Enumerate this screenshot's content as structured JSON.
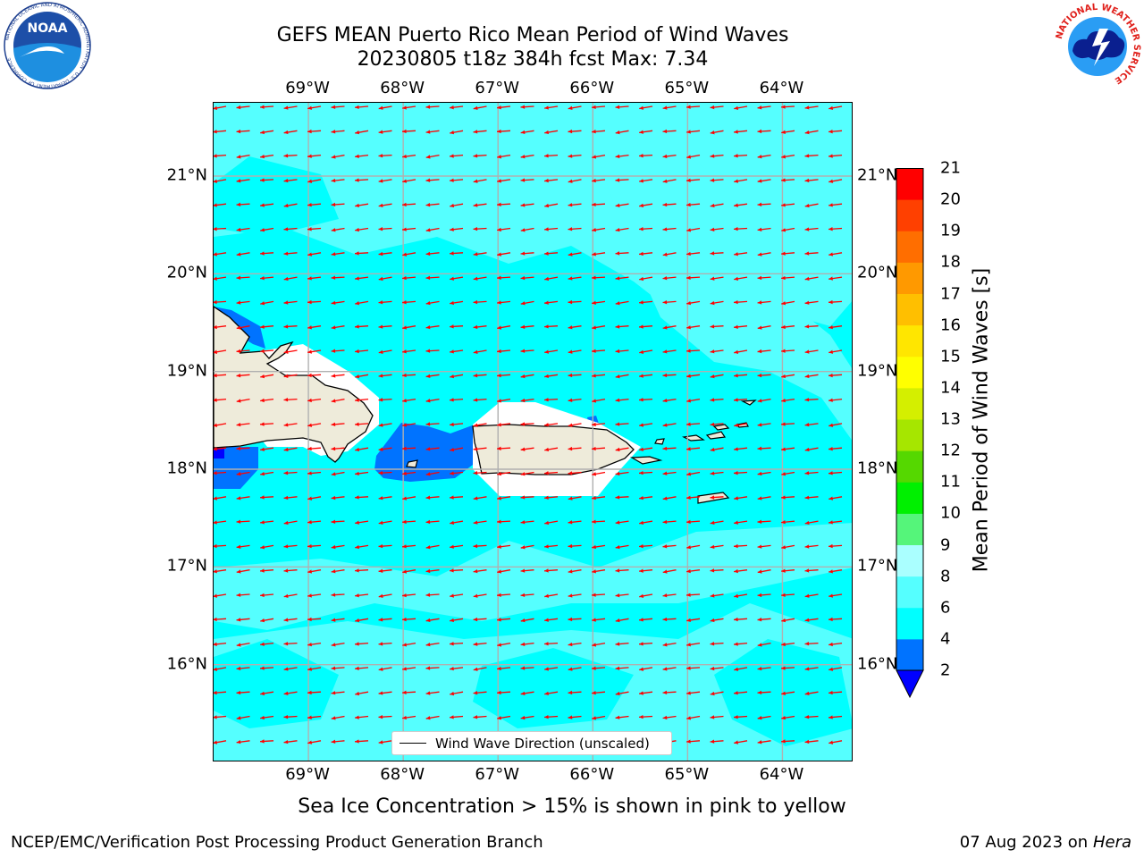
{
  "title": {
    "line1": "GEFS MEAN Puerto Rico Mean Period of Wind Waves",
    "line2": "20230805 t18z 384h fcst   Max: 7.34"
  },
  "logos": {
    "noaa": "NOAA",
    "noaa_ring_text": "NATIONAL OCEANIC AND ATMOSPHERIC ADMINISTRATION · U.S. DEPARTMENT OF COMMERCE",
    "nws_ring_text": "NATIONAL WEATHER SERVICE"
  },
  "map": {
    "lon_labels": [
      "69°W",
      "68°W",
      "67°W",
      "66°W",
      "65°W",
      "64°W"
    ],
    "lat_labels": [
      "21°N",
      "20°N",
      "19°N",
      "18°N",
      "17°N",
      "16°N"
    ],
    "extent": {
      "lon_min": -70.0,
      "lon_max": -63.25,
      "lat_min": 15.0,
      "lat_max": 21.75
    },
    "lon_ticks": [
      -69,
      -68,
      -67,
      -66,
      -65,
      -64
    ],
    "lat_ticks": [
      21,
      20,
      19,
      18,
      17,
      16
    ],
    "legend_text": "Wind Wave Direction (unscaled)",
    "arrow_color": "#ff0000",
    "land_color": "#eeebda",
    "wind_direction": "from east (arrows point west-southwest)"
  },
  "colorbar": {
    "label": "Mean Period of Wind Waves [s]",
    "tick_labels": [
      "21",
      "20",
      "19",
      "18",
      "17",
      "16",
      "15",
      "14",
      "13",
      "12",
      "11",
      "10",
      "9",
      "8",
      "6",
      "4",
      "2"
    ],
    "levels": [
      2,
      4,
      6,
      8,
      9,
      10,
      11,
      12,
      13,
      14,
      15,
      16,
      17,
      18,
      19,
      20,
      21
    ],
    "colors": [
      "#0073ff",
      "#00ffff",
      "#55ffff",
      "#aaffff",
      "#55f57a",
      "#00f000",
      "#55d800",
      "#a6e600",
      "#d4ef00",
      "#ffff00",
      "#ffe600",
      "#ffbf00",
      "#ff9900",
      "#ff6e00",
      "#ff4000",
      "#ff0000"
    ],
    "extend_below_color": "#0000ff"
  },
  "caption": "Sea Ice Concentration > 15% is shown in pink to yellow",
  "footer": {
    "left": "NCEP/EMC/Verification Post Processing Product Generation Branch",
    "right_date": "07 Aug 2023 on",
    "right_host": "Hera"
  }
}
